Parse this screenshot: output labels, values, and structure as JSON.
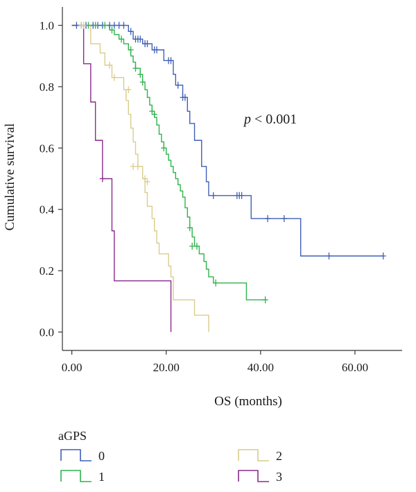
{
  "chart_data": {
    "type": "line",
    "subtype": "kaplan-meier step",
    "xlabel": "OS (months)",
    "ylabel": "Cumulative survival",
    "xlim": [
      -2,
      70
    ],
    "ylim": [
      -0.06,
      1.06
    ],
    "xticks": [
      0,
      20,
      40,
      60
    ],
    "xtick_labels": [
      "0.00",
      "20.00",
      "40.00",
      "60.00"
    ],
    "yticks": [
      0.0,
      0.2,
      0.4,
      0.6,
      0.8,
      1.0
    ],
    "ytick_labels": [
      "0.0",
      "0.2",
      "0.4",
      "0.6",
      "0.8",
      "1.0"
    ],
    "grid": false,
    "annotation": {
      "prefix": "p",
      "text": " < 0.001",
      "x": 36.5,
      "y": 0.68
    },
    "legend": {
      "title": "aGPS",
      "position": "bottom"
    },
    "series": [
      {
        "name": "0",
        "color": "#3f5fb5",
        "steps": [
          [
            0,
            1.0
          ],
          [
            12,
            0.98
          ],
          [
            13,
            0.955
          ],
          [
            15,
            0.94
          ],
          [
            17,
            0.92
          ],
          [
            19.5,
            0.885
          ],
          [
            21.5,
            0.84
          ],
          [
            22,
            0.805
          ],
          [
            23.5,
            0.765
          ],
          [
            24.5,
            0.72
          ],
          [
            25,
            0.68
          ],
          [
            26,
            0.625
          ],
          [
            27.5,
            0.54
          ],
          [
            28.5,
            0.49
          ],
          [
            29,
            0.445
          ],
          [
            38,
            0.37
          ],
          [
            48.5,
            0.248
          ],
          [
            66,
            0.248
          ]
        ],
        "censors": [
          [
            1,
            1.0
          ],
          [
            2,
            1.0
          ],
          [
            3,
            1.0
          ],
          [
            4.5,
            1.0
          ],
          [
            5.5,
            1.0
          ],
          [
            6.5,
            1.0
          ],
          [
            8,
            1.0
          ],
          [
            9,
            1.0
          ],
          [
            10,
            1.0
          ],
          [
            11,
            1.0
          ],
          [
            12.5,
            0.98
          ],
          [
            13.5,
            0.955
          ],
          [
            14,
            0.955
          ],
          [
            14.5,
            0.955
          ],
          [
            15.5,
            0.94
          ],
          [
            16,
            0.94
          ],
          [
            17.5,
            0.92
          ],
          [
            18,
            0.92
          ],
          [
            20.5,
            0.885
          ],
          [
            21,
            0.885
          ],
          [
            22.5,
            0.805
          ],
          [
            23.5,
            0.765
          ],
          [
            24,
            0.765
          ],
          [
            30,
            0.445
          ],
          [
            35,
            0.445
          ],
          [
            35.5,
            0.445
          ],
          [
            36,
            0.445
          ],
          [
            41.5,
            0.37
          ],
          [
            45,
            0.37
          ],
          [
            54.5,
            0.248
          ],
          [
            66,
            0.248
          ]
        ]
      },
      {
        "name": "1",
        "color": "#2db34a",
        "steps": [
          [
            0,
            1.0
          ],
          [
            8,
            0.985
          ],
          [
            9,
            0.97
          ],
          [
            10,
            0.955
          ],
          [
            11,
            0.94
          ],
          [
            12,
            0.92
          ],
          [
            12.5,
            0.9
          ],
          [
            13,
            0.88
          ],
          [
            13.5,
            0.86
          ],
          [
            14.5,
            0.84
          ],
          [
            15,
            0.815
          ],
          [
            15.5,
            0.79
          ],
          [
            16,
            0.765
          ],
          [
            16.5,
            0.74
          ],
          [
            17,
            0.72
          ],
          [
            17.5,
            0.7
          ],
          [
            18,
            0.675
          ],
          [
            18.5,
            0.645
          ],
          [
            19,
            0.62
          ],
          [
            19.5,
            0.6
          ],
          [
            20,
            0.58
          ],
          [
            20.5,
            0.56
          ],
          [
            21,
            0.54
          ],
          [
            21.5,
            0.52
          ],
          [
            22,
            0.5
          ],
          [
            22.5,
            0.48
          ],
          [
            23,
            0.46
          ],
          [
            23.5,
            0.44
          ],
          [
            24,
            0.405
          ],
          [
            24.5,
            0.375
          ],
          [
            25,
            0.34
          ],
          [
            25.5,
            0.31
          ],
          [
            26,
            0.28
          ],
          [
            27,
            0.255
          ],
          [
            28,
            0.23
          ],
          [
            28.5,
            0.205
          ],
          [
            29,
            0.18
          ],
          [
            30,
            0.16
          ],
          [
            37,
            0.105
          ],
          [
            41,
            0.105
          ]
        ],
        "censors": [
          [
            3.5,
            1.0
          ],
          [
            5,
            1.0
          ],
          [
            7,
            1.0
          ],
          [
            8.5,
            0.985
          ],
          [
            10.5,
            0.955
          ],
          [
            12.5,
            0.92
          ],
          [
            13.5,
            0.86
          ],
          [
            14.5,
            0.84
          ],
          [
            15,
            0.815
          ],
          [
            17,
            0.72
          ],
          [
            17.5,
            0.71
          ],
          [
            19.5,
            0.6
          ],
          [
            25,
            0.34
          ],
          [
            25.5,
            0.28
          ],
          [
            26.5,
            0.28
          ],
          [
            30.5,
            0.16
          ],
          [
            41,
            0.105
          ]
        ]
      },
      {
        "name": "2",
        "color": "#d9cc8c",
        "steps": [
          [
            0,
            1.0
          ],
          [
            4,
            0.94
          ],
          [
            6,
            0.91
          ],
          [
            7,
            0.87
          ],
          [
            8.5,
            0.83
          ],
          [
            11,
            0.79
          ],
          [
            11.5,
            0.755
          ],
          [
            12,
            0.71
          ],
          [
            12.5,
            0.665
          ],
          [
            13,
            0.62
          ],
          [
            13.5,
            0.58
          ],
          [
            14,
            0.54
          ],
          [
            15,
            0.5
          ],
          [
            15.5,
            0.455
          ],
          [
            16,
            0.41
          ],
          [
            17,
            0.37
          ],
          [
            17.5,
            0.33
          ],
          [
            18,
            0.29
          ],
          [
            18.5,
            0.255
          ],
          [
            20.5,
            0.215
          ],
          [
            21,
            0.18
          ],
          [
            21.5,
            0.105
          ],
          [
            26,
            0.055
          ],
          [
            29,
            0.0
          ]
        ],
        "censors": [
          [
            2,
            1.0
          ],
          [
            2.5,
            1.0
          ],
          [
            8,
            0.87
          ],
          [
            9,
            0.83
          ],
          [
            12,
            0.79
          ],
          [
            13,
            0.54
          ],
          [
            14,
            0.54
          ],
          [
            15.5,
            0.5
          ],
          [
            16,
            0.49
          ]
        ]
      },
      {
        "name": "3",
        "color": "#8a2a8c",
        "steps": [
          [
            0,
            1.0
          ],
          [
            2.5,
            0.875
          ],
          [
            4,
            0.75
          ],
          [
            5,
            0.625
          ],
          [
            6.5,
            0.5
          ],
          [
            8.5,
            0.33
          ],
          [
            9,
            0.167
          ],
          [
            21,
            0.0
          ]
        ],
        "censors": [
          [
            6.5,
            0.5
          ]
        ]
      }
    ]
  }
}
